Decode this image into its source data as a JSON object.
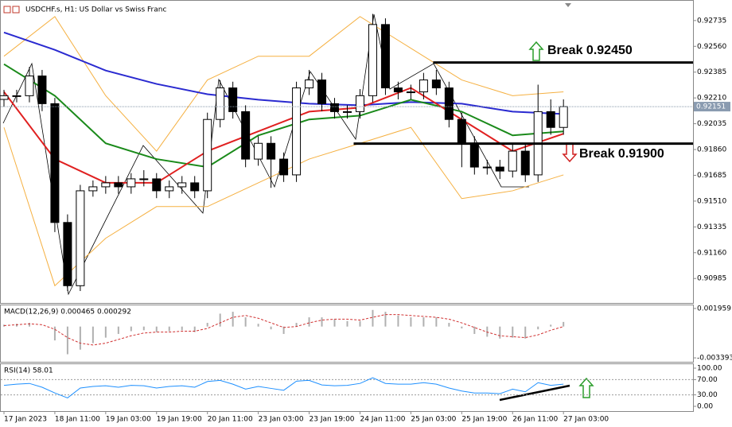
{
  "chart_data": [
    {
      "type": "candlestick",
      "title": "USDCHF.s, H1:  US Dollar vs Swiss Franc",
      "xlim": [
        -1,
        216.75
      ],
      "ylim": [
        0.90819,
        0.92869
      ],
      "yticks": [
        0.92735,
        {
          "value": 0.9256,
          "label": "0.92560"
        },
        0.92385,
        {
          "value": 0.9221,
          "label": "0.92210"
        },
        0.92035,
        {
          "value": 0.9186,
          "label": "0.91860"
        },
        0.91685,
        {
          "value": 0.9151,
          "label": "0.91510"
        },
        0.91335,
        {
          "value": 0.9116,
          "label": "0.91160"
        },
        0.90985
      ],
      "x": [
        0,
        4,
        8,
        12,
        16,
        20,
        24,
        28,
        32,
        36,
        40,
        44,
        48,
        52,
        56,
        60,
        64,
        68,
        72,
        76,
        80,
        84,
        88,
        92,
        96,
        100,
        104,
        108,
        112,
        116,
        120,
        124,
        128,
        132,
        136,
        140,
        144,
        148,
        152,
        156,
        160,
        164,
        168,
        172,
        176
      ],
      "open": [
        0.922,
        0.92225,
        0.92225,
        0.92359,
        0.92171,
        0.91365,
        0.90936,
        0.9158,
        0.91607,
        0.91634,
        0.91607,
        0.91661,
        0.91661,
        0.9158,
        0.91607,
        0.91634,
        0.9158,
        0.92064,
        0.92278,
        0.92117,
        0.91795,
        0.91902,
        0.91795,
        0.91688,
        0.92278,
        0.92332,
        0.92171,
        0.92117,
        0.92117,
        0.92225,
        0.92708,
        0.92278,
        0.92251,
        0.92251,
        0.92332,
        0.92278,
        0.92064,
        0.91902,
        0.91741,
        0.91741,
        0.91714,
        0.91849,
        0.91688,
        0.92117,
        0.9201
      ],
      "high": [
        0.92265,
        0.92265,
        0.9242,
        0.924,
        0.9221,
        0.9142,
        0.9162,
        0.9165,
        0.9168,
        0.9168,
        0.917,
        0.9172,
        0.917,
        0.9165,
        0.9168,
        0.9168,
        0.9211,
        0.9233,
        0.9232,
        0.9216,
        0.9195,
        0.9195,
        0.9184,
        0.9232,
        0.924,
        0.9238,
        0.9221,
        0.9216,
        0.9227,
        0.9278,
        0.9275,
        0.9232,
        0.923,
        0.9238,
        0.924,
        0.9232,
        0.9211,
        0.9195,
        0.9179,
        0.9179,
        0.919,
        0.919,
        0.923,
        0.922,
        0.922
      ],
      "low": [
        0.9215,
        0.9218,
        0.9218,
        0.9212,
        0.913,
        0.909,
        0.909,
        0.9154,
        0.9156,
        0.9156,
        0.9156,
        0.9161,
        0.9153,
        0.9153,
        0.9156,
        0.9153,
        0.9153,
        0.9201,
        0.9207,
        0.9174,
        0.9175,
        0.916,
        0.9164,
        0.9164,
        0.9223,
        0.9212,
        0.9207,
        0.9207,
        0.9207,
        0.9218,
        0.9223,
        0.922,
        0.922,
        0.922,
        0.9223,
        0.9201,
        0.9174,
        0.9169,
        0.9169,
        0.9166,
        0.9167,
        0.9164,
        0.9164,
        0.9196,
        0.9196
      ],
      "close": [
        0.92225,
        0.92225,
        0.92359,
        0.92171,
        0.91365,
        0.90936,
        0.9158,
        0.91607,
        0.91634,
        0.91607,
        0.91661,
        0.91661,
        0.9158,
        0.91607,
        0.91634,
        0.9158,
        0.92064,
        0.92278,
        0.92117,
        0.91795,
        0.91902,
        0.91795,
        0.91688,
        0.92278,
        0.92332,
        0.92171,
        0.92117,
        0.92117,
        0.92225,
        0.92708,
        0.92278,
        0.92251,
        0.92251,
        0.92332,
        0.92278,
        0.92064,
        0.91902,
        0.91741,
        0.91741,
        0.91714,
        0.91849,
        0.91688,
        0.92117,
        0.9201,
        0.92151
      ],
      "up_color": "#ffffff",
      "down_color": "#000000",
      "overlays": [
        {
          "color": "#f5b041",
          "x": [
            0,
            16,
            32,
            48,
            64,
            80,
            96,
            112,
            128,
            144,
            160,
            176
          ],
          "values": [
            0.92493,
            0.92762,
            0.92225,
            0.91849,
            0.92332,
            0.92493,
            0.92493,
            0.92762,
            0.92547,
            0.92332,
            0.92225,
            0.92251
          ]
        },
        {
          "color": "#f5b041",
          "x": [
            0,
            16,
            32,
            48,
            64,
            80,
            96,
            112,
            128,
            144,
            160,
            176
          ],
          "values": [
            0.9201,
            0.90936,
            0.91258,
            0.91473,
            0.91473,
            0.91634,
            0.91795,
            0.91902,
            0.9201,
            0.91527,
            0.9158,
            0.91688
          ]
        },
        {
          "color": "#2a2ad0",
          "x": [
            0,
            16,
            32,
            48,
            64,
            80,
            96,
            112,
            128,
            144,
            160,
            176
          ],
          "values": [
            0.92654,
            0.92536,
            0.92396,
            0.92305,
            0.92235,
            0.92198,
            0.92171,
            0.9216,
            0.92182,
            0.92171,
            0.92117,
            0.92101
          ]
        },
        {
          "color": "#1a8a1a",
          "x": [
            0,
            16,
            32,
            48,
            64,
            80,
            96,
            112,
            128,
            144,
            160,
            176
          ],
          "values": [
            0.92439,
            0.92225,
            0.91902,
            0.91795,
            0.91741,
            0.91956,
            0.92064,
            0.9209,
            0.92198,
            0.92117,
            0.91956,
            0.91983
          ]
        },
        {
          "color": "#e02020",
          "x": [
            0,
            16,
            32,
            48,
            64,
            80,
            96,
            112,
            128,
            144,
            160,
            176
          ],
          "values": [
            0.92251,
            0.91795,
            0.91634,
            0.91634,
            0.91849,
            0.91983,
            0.92117,
            0.92144,
            0.92278,
            0.92064,
            0.91849,
            0.91967
          ]
        }
      ],
      "current_price": 0.92151,
      "levels": [
        {
          "value": 0.9245,
          "x_start": 135,
          "label": "Break 0.92450"
        },
        {
          "value": 0.919,
          "x_start": 110,
          "label": "Break 0.91900"
        }
      ]
    },
    {
      "type": "macd",
      "title": "MACD(12,26,9) 0.000465 0.000292",
      "xlim": [
        -1,
        216.75
      ],
      "ylim": [
        -0.003818,
        0.002299
      ],
      "yticks": [
        0.001959,
        -0.003393
      ],
      "x": [
        0,
        4,
        8,
        12,
        16,
        20,
        24,
        28,
        32,
        36,
        40,
        44,
        48,
        52,
        56,
        60,
        64,
        68,
        72,
        76,
        80,
        84,
        88,
        92,
        96,
        100,
        104,
        108,
        112,
        116,
        120,
        124,
        128,
        132,
        136,
        140,
        144,
        148,
        152,
        156,
        160,
        164,
        168,
        172,
        176
      ],
      "histogram": {
        "color": "#b0b0b0",
        "values": [
          0.0002,
          0.0003,
          0.0004,
          0.0,
          -0.0015,
          -0.003,
          -0.0025,
          -0.0018,
          -0.0012,
          -0.0008,
          -0.0005,
          -0.0004,
          -0.0006,
          -0.0005,
          -0.0004,
          -0.0006,
          0.0004,
          0.0014,
          0.0016,
          0.001,
          0.0003,
          -0.0003,
          -0.0008,
          0.0004,
          0.001,
          0.001,
          0.0008,
          0.0006,
          0.0006,
          0.0018,
          0.0016,
          0.0012,
          0.001,
          0.001,
          0.001,
          0.0004,
          -0.0002,
          -0.0008,
          -0.0011,
          -0.0013,
          -0.0012,
          -0.0013,
          -0.0003,
          0.0002,
          0.0005
        ]
      },
      "signal": {
        "color": "#d03030",
        "values": [
          0.0001,
          0.0002,
          0.0003,
          0.0002,
          -0.0003,
          -0.0012,
          -0.0018,
          -0.002,
          -0.0018,
          -0.0014,
          -0.001,
          -0.0007,
          -0.0006,
          -0.0006,
          -0.0005,
          -0.0005,
          -0.0002,
          0.0004,
          0.001,
          0.0012,
          0.0009,
          0.0004,
          -0.0001,
          0.0,
          0.0004,
          0.0007,
          0.0008,
          0.0008,
          0.0007,
          0.001,
          0.0013,
          0.0013,
          0.0012,
          0.0011,
          0.001,
          0.0008,
          0.0004,
          -0.0001,
          -0.0006,
          -0.001,
          -0.0011,
          -0.0012,
          -0.0009,
          -0.0004,
          0.0
        ]
      }
    },
    {
      "type": "line",
      "title": "RSI(14) 58.01",
      "xlim": [
        -1,
        216.75
      ],
      "ylim": [
        -12.5,
        110.4
      ],
      "yticks": [
        {
          "value": 100,
          "label": "100.00"
        },
        {
          "value": 70,
          "label": "70.00"
        },
        {
          "value": 30,
          "label": "30.00"
        },
        {
          "value": 0,
          "label": "0.00"
        }
      ],
      "levels": [
        70,
        30
      ],
      "xticks": [
        {
          "value": 0,
          "label": "17 Jan 2023"
        },
        {
          "value": 16,
          "label": "18 Jan 11:00"
        },
        {
          "value": 32,
          "label": "19 Jan 03:00"
        },
        {
          "value": 48,
          "label": "19 Jan 19:00"
        },
        {
          "value": 64,
          "label": "20 Jan 11:00"
        },
        {
          "value": 80,
          "label": "23 Jan 03:00"
        },
        {
          "value": 96,
          "label": "23 Jan 19:00"
        },
        {
          "value": 112,
          "label": "24 Jan 11:00"
        },
        {
          "value": 128,
          "label": "25 Jan 03:00"
        },
        {
          "value": 144,
          "label": "25 Jan 19:00"
        },
        {
          "value": 160,
          "label": "26 Jan 11:00"
        },
        {
          "value": 176,
          "label": "27 Jan 03:00"
        }
      ],
      "x": [
        0,
        4,
        8,
        12,
        16,
        20,
        24,
        28,
        32,
        36,
        40,
        44,
        48,
        52,
        56,
        60,
        64,
        68,
        72,
        76,
        80,
        84,
        88,
        92,
        96,
        100,
        104,
        108,
        112,
        116,
        120,
        124,
        128,
        132,
        136,
        140,
        144,
        148,
        152,
        156,
        160,
        164,
        168,
        172,
        176
      ],
      "color": "#1e90ff",
      "values": [
        55,
        58,
        60,
        50,
        35,
        22,
        48,
        52,
        54,
        50,
        55,
        54,
        48,
        52,
        54,
        50,
        65,
        68,
        58,
        45,
        52,
        47,
        42,
        66,
        68,
        56,
        54,
        55,
        60,
        75,
        60,
        58,
        58,
        62,
        58,
        48,
        40,
        35,
        35,
        33,
        45,
        38,
        62,
        55,
        58
      ]
    }
  ]
}
